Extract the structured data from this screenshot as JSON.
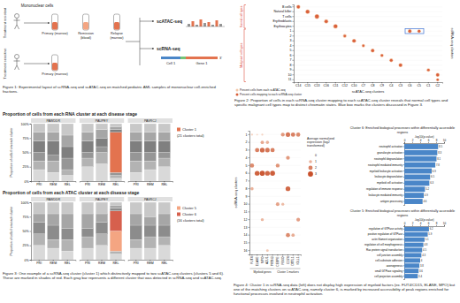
{
  "figure1": {
    "cells_label": "Mononuclear cells",
    "groups": [
      {
        "label": "Treatment resistant",
        "samples": [
          "Primary (marrow)",
          "Remission (blood)",
          "Relapse (marrow)"
        ]
      },
      {
        "label": "Treatment sensitive",
        "samples": [
          "Primary (marrow)"
        ]
      }
    ],
    "assays": [
      "scATAC-seq",
      "scRNA-seq"
    ],
    "read": {
      "cell": "Cell 1",
      "gene": "Gene 1",
      "end": "3'"
    },
    "caption": "Figure 1: Experimental layout of scRNA-seq and scATAC-seq on matched pediatric AML samples of mononuclear cell-enriched fractions."
  },
  "chart_data": [
    {
      "type": "dot",
      "rows": [
        "B cells",
        "Natural killer",
        "T cells",
        "Erythroblasts",
        "Erythrocytes",
        "1",
        "2",
        "3",
        "4",
        "5",
        "6",
        "7",
        "8",
        "9",
        "10",
        "11"
      ],
      "columns": [
        "C14",
        "C15",
        "C13",
        "C16",
        "C11",
        "C12",
        "C10",
        "C7",
        "C8",
        "C9",
        "C4",
        "C3",
        "C6",
        "C5",
        "C1",
        "C2"
      ],
      "row_groups": [
        {
          "label": "Normal cell types",
          "from": "B cells",
          "to": "Erythrocytes"
        },
        {
          "label": "Malignant cell types",
          "from": "1",
          "to": "11"
        }
      ],
      "x_label": "scATAC-seq clusters",
      "y_label": "scRNA-seq clusters",
      "highlight": {
        "row": "1",
        "columns": [
          "C6",
          "C5"
        ]
      },
      "size_range": [
        0,
        100
      ],
      "series": [
        {
          "name": "Percent cells from each scATAC-seq",
          "color": "#f4c7a8",
          "rows": [
            "B cells",
            "Natural killer",
            "T cells",
            "Erythroblasts",
            "Erythrocytes",
            "1",
            "1",
            "2",
            "3",
            "4",
            "5",
            "6",
            "7",
            "8",
            "9",
            "10",
            "11"
          ],
          "columns": [
            "C14",
            "C15",
            "C13",
            "C16",
            "C11",
            "C6",
            "C5",
            "C12",
            "C10",
            "C7",
            "C8",
            "C9",
            "C4",
            "C3",
            "C1",
            "C2",
            "C2"
          ],
          "values": [
            60,
            70,
            80,
            65,
            75,
            55,
            45,
            50,
            60,
            40,
            55,
            45,
            50,
            60,
            45,
            55,
            35
          ]
        },
        {
          "name": "Percent cells mapping to each scRNA-seq cluster",
          "color": "#d9603b",
          "rows": [
            "B cells",
            "Natural killer",
            "T cells",
            "Erythroblasts",
            "Erythrocytes",
            "1",
            "1",
            "2",
            "3",
            "4",
            "5",
            "6",
            "7",
            "8",
            "9",
            "10",
            "11"
          ],
          "columns": [
            "C14",
            "C15",
            "C13",
            "C16",
            "C11",
            "C6",
            "C5",
            "C12",
            "C10",
            "C7",
            "C8",
            "C9",
            "C4",
            "C3",
            "C1",
            "C2",
            "C2"
          ],
          "values": [
            30,
            40,
            50,
            35,
            45,
            30,
            25,
            20,
            35,
            15,
            30,
            20,
            25,
            35,
            20,
            30,
            15
          ]
        }
      ]
    },
    {
      "type": "bar",
      "stacked": true,
      "title": "Proportion of cells from each RNA cluster at each disease stage",
      "y_label": "Proportion of cells from each cluster",
      "panels": [
        "PAWDDR",
        "PAUPEY",
        "PAVRCJ"
      ],
      "categories": [
        "PRI",
        "REM",
        "REL",
        "PRI",
        "REM",
        "REL",
        "PRI",
        "REM",
        "REL"
      ],
      "ylim": [
        0,
        100
      ],
      "yticks": [
        {
          "value": 0,
          "label": "0%"
        },
        {
          "value": 25,
          "label": "25%"
        },
        {
          "value": 50,
          "label": "50%"
        },
        {
          "value": 75,
          "label": "75%"
        },
        {
          "value": 100,
          "label": "100%"
        }
      ],
      "legend_note": "(21 clusters total)",
      "series": [
        {
          "color": "#d9d9d9",
          "values": [
            20,
            15,
            10,
            25,
            30,
            5,
            15,
            20,
            25
          ]
        },
        {
          "color": "#b3b3b3",
          "values": [
            15,
            20,
            10,
            15,
            20,
            5,
            20,
            15,
            15
          ]
        },
        {
          "color": "#969696",
          "values": [
            15,
            10,
            20,
            10,
            10,
            5,
            15,
            15,
            10
          ]
        },
        {
          "name": "Cluster 1",
          "color": "#e3734f",
          "values": [
            0,
            0,
            0,
            0,
            0,
            70,
            0,
            0,
            0
          ]
        },
        {
          "color": "#7f7f7f",
          "values": [
            20,
            25,
            20,
            20,
            15,
            5,
            20,
            20,
            20
          ]
        },
        {
          "color": "#a6a6a6",
          "values": [
            15,
            15,
            20,
            15,
            15,
            5,
            15,
            15,
            15
          ]
        },
        {
          "color": "#c8c8c8",
          "values": [
            15,
            15,
            20,
            15,
            10,
            5,
            15,
            15,
            15
          ]
        }
      ]
    },
    {
      "type": "bar",
      "stacked": true,
      "title": "Proportion of cells from each ATAC cluster at each disease stage",
      "y_label": "Proportion of cells from each cluster",
      "panels": [
        "PAWDDR",
        "PAUPEY",
        "PAVRCJ"
      ],
      "categories": [
        "PRI",
        "REM",
        "REL",
        "PRI",
        "REM",
        "REL",
        "PRI",
        "REM",
        "REL"
      ],
      "ylim": [
        0,
        100
      ],
      "yticks": [
        {
          "value": 0,
          "label": "0%"
        },
        {
          "value": 25,
          "label": "25%"
        },
        {
          "value": 50,
          "label": "50%"
        },
        {
          "value": 75,
          "label": "75%"
        },
        {
          "value": 100,
          "label": "100%"
        }
      ],
      "legend_note": "(16 clusters total)",
      "series": [
        {
          "color": "#d9d9d9",
          "values": [
            25,
            20,
            15,
            20,
            25,
            10,
            20,
            20,
            25
          ]
        },
        {
          "color": "#b3b3b3",
          "values": [
            20,
            15,
            20,
            20,
            20,
            5,
            15,
            20,
            15
          ]
        },
        {
          "name": "Cluster 5",
          "color": "#f4a582",
          "values": [
            0,
            0,
            0,
            0,
            0,
            35,
            0,
            0,
            0
          ]
        },
        {
          "name": "Cluster 6",
          "color": "#d6604d",
          "values": [
            0,
            0,
            0,
            0,
            0,
            35,
            0,
            0,
            0
          ]
        },
        {
          "color": "#8c8c8c",
          "values": [
            20,
            25,
            20,
            15,
            20,
            5,
            25,
            20,
            20
          ]
        },
        {
          "color": "#a6a6a6",
          "values": [
            15,
            20,
            25,
            25,
            15,
            5,
            20,
            15,
            20
          ]
        },
        {
          "color": "#c8c8c8",
          "values": [
            20,
            20,
            20,
            20,
            20,
            5,
            20,
            25,
            20
          ]
        }
      ]
    },
    {
      "type": "dot",
      "rows": [
        "1",
        "2",
        "3",
        "4",
        "5",
        "6",
        "7",
        "8",
        "9",
        "10",
        "11",
        "12",
        "13",
        "14",
        "15",
        "16"
      ],
      "columns": [
        "FUT4",
        "ELANE",
        "MPO",
        "AZU1",
        "PRTN3",
        "CEBPE",
        "FBXO",
        "CD74",
        "DTTL1",
        "IGLL1"
      ],
      "column_groups": [
        {
          "label": "Myeloid genes",
          "from": "FUT4",
          "to": "PRTN3"
        },
        {
          "label": "Cluster 1 markers",
          "from": "CEBPE",
          "to": "IGLL1"
        }
      ],
      "y_label": "scRNA-seq clusters",
      "legend_title": "Average normalized expression (log2 transformed)",
      "color_range": [
        0,
        3
      ],
      "color_ticks": [
        0,
        1,
        2,
        3
      ],
      "dots": {
        "rows": [
          "1",
          "1",
          "1",
          "1",
          "1",
          "1",
          "1",
          "2",
          "2",
          "3",
          "3",
          "3",
          "3",
          "4",
          "5",
          "5",
          "6",
          "6",
          "6",
          "6",
          "8",
          "8",
          "10",
          "10",
          "12",
          "12",
          "14",
          "14",
          "16"
        ],
        "columns": [
          "FUT4",
          "ELANE",
          "MPO",
          "FBXO",
          "CD74",
          "DTTL1",
          "IGLL1",
          "MPO",
          "AZU1",
          "ELANE",
          "MPO",
          "AZU1",
          "PRTN3",
          "CD74",
          "FUT4",
          "CEBPE",
          "ELANE",
          "MPO",
          "AZU1",
          "PRTN3",
          "FUT4",
          "CD74",
          "CEBPE",
          "FBXO",
          "MPO",
          "IGLL1",
          "CD74",
          "DTTL1",
          "AZU1"
        ],
        "values": [
          0.3,
          0.2,
          0.3,
          1.5,
          2.2,
          2.0,
          1.8,
          1.2,
          1.0,
          2.0,
          2.4,
          2.2,
          2.0,
          1.5,
          1.8,
          1.6,
          2.6,
          2.8,
          2.5,
          2.7,
          1.0,
          2.5,
          1.3,
          0.8,
          0.9,
          1.4,
          1.8,
          1.1,
          0.6
        ]
      }
    },
    {
      "type": "bar",
      "orientation": "horizontal",
      "title": "Cluster 6: Enriched biological processes within differentially accessible regions",
      "x_label": "-log10(p-value)",
      "categories": [
        "neutrophil activation",
        "granulocyte activation",
        "neutrophil degranulation",
        "neutrophil mediated immunity",
        "myeloid leukocyte activation",
        "leukocyte degranulation",
        "myeloid cell activation",
        "regulation of immune response",
        "leukocyte mediated immunity",
        "antigen processing"
      ],
      "values": [
        8.5,
        8.3,
        8.1,
        7.8,
        6.9,
        6.5,
        6.3,
        5.2,
        4.9,
        4.6
      ],
      "color": "#4a86c8",
      "xlim": [
        0,
        10
      ],
      "xticks": [
        0,
        2,
        4,
        6,
        8,
        10
      ],
      "data_labels": true
    },
    {
      "type": "bar",
      "orientation": "horizontal",
      "title": "Cluster 5: Enriched biological processes within differentially accessible regions",
      "x_label": "-log10(p-value)",
      "categories": [
        "regulation of GTPase activity",
        "positive regulation of GTPase",
        "actin filament organization",
        "regulation of cell morphogenesis",
        "Ras protein signal transduction",
        "cell junction assembly",
        "cell-substrate adhesion",
        "axonogenesis",
        "small GTPase signaling",
        "cell projection assembly"
      ],
      "values": [
        6.2,
        5.9,
        5.1,
        4.8,
        4.5,
        4.3,
        4.0,
        3.8,
        3.6,
        3.4
      ],
      "color": "#4a86c8",
      "xlim": [
        0,
        10
      ],
      "xticks": [
        0,
        2,
        4,
        6,
        8,
        10
      ],
      "data_labels": true
    }
  ],
  "captions": {
    "figure2": "Figure 2: Proportion of cells in each scRNA-seq cluster mapping to each scATAC-seq cluster reveals that normal cell types and specific malignant cell types map to distinct chromatin states. Blue box marks the clusters discussed in Figure 3.",
    "figure3": "Figure 3: One example of a scRNA-seq cluster (cluster 1) which distinctively mapped to two scATAC-seq clusters (clusters 5 and 6). These are marked in shades of red. Each gray bar represents a different cluster that was detected in scRNA-seq and scATAC-seq.",
    "figure4": "Figure 4: Cluster 1 in scRNA-seq data (left) does not display high expression of myeloid factors (ex. FUT4/CD15, ELANE, MPO) but one of the matching clusters on scATAC-seq, namely cluster 6, is marked by increased accessibility of peak regions enriched for functional processes involved in neutrophil activation."
  }
}
